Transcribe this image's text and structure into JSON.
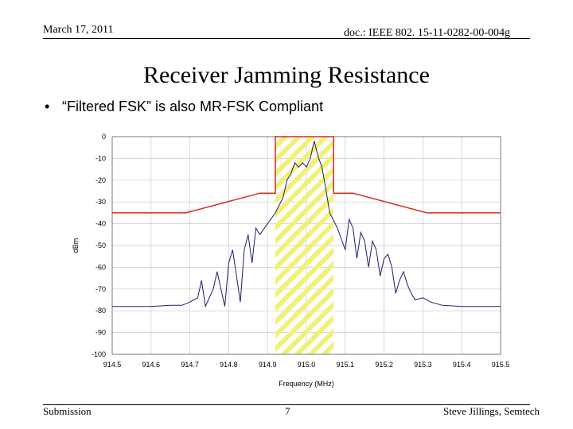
{
  "header": {
    "date": "March 17, 2011",
    "doc_id": "doc.: IEEE 802. 15-11-0282-00-004g"
  },
  "slide": {
    "title": "Receiver Jamming Resistance",
    "bullet": "“Filtered FSK” is also MR-FSK Compliant"
  },
  "footer": {
    "left": "Submission",
    "page": "7",
    "right": "Steve Jillings, Semtech"
  },
  "colors": {
    "mask": "#d42a1c",
    "spectrum": "#1c1f6e",
    "hatch_yellow": "#f3f07a",
    "grid": "#c8c8c8"
  },
  "chart_data": {
    "type": "line",
    "xlabel": "Frequency (MHz)",
    "ylabel": "dBm",
    "xlim": [
      914.5,
      915.5
    ],
    "ylim": [
      -100,
      0
    ],
    "x_ticks": [
      "914.5",
      "914.6",
      "914.7",
      "914.8",
      "914.9",
      "915.0",
      "915.1",
      "915.2",
      "915.3",
      "915.4",
      "915.5"
    ],
    "y_ticks": [
      "0",
      "-10",
      "-20",
      "-30",
      "-40",
      "-50",
      "-60",
      "-70",
      "-80",
      "-90",
      "-100"
    ],
    "grid": true,
    "highlight_band": {
      "x": [
        914.92,
        915.07
      ],
      "pattern": "yellow diagonal hatch"
    },
    "series": [
      {
        "role": "mask",
        "color": "#d42a1c",
        "x": [
          914.5,
          914.69,
          914.88,
          914.92,
          914.92,
          915.07,
          915.07,
          915.12,
          915.31,
          915.5
        ],
        "y": [
          -35,
          -35,
          -26,
          -26,
          0,
          0,
          -26,
          -26,
          -35,
          -35
        ]
      },
      {
        "role": "spectrum",
        "color": "#1c1f6e",
        "x": [
          914.5,
          914.55,
          914.6,
          914.65,
          914.68,
          914.7,
          914.72,
          914.73,
          914.74,
          914.76,
          914.77,
          914.78,
          914.79,
          914.8,
          914.81,
          914.82,
          914.83,
          914.84,
          914.85,
          914.86,
          914.87,
          914.88,
          914.9,
          914.92,
          914.94,
          914.95,
          914.96,
          914.97,
          914.98,
          914.99,
          915.0,
          915.01,
          915.02,
          915.03,
          915.04,
          915.05,
          915.06,
          915.08,
          915.1,
          915.11,
          915.12,
          915.13,
          915.14,
          915.15,
          915.16,
          915.17,
          915.18,
          915.19,
          915.2,
          915.21,
          915.22,
          915.23,
          915.24,
          915.25,
          915.26,
          915.27,
          915.28,
          915.3,
          915.32,
          915.35,
          915.4,
          915.45,
          915.5
        ],
        "y": [
          -78,
          -78,
          -78,
          -77.5,
          -77.5,
          -76,
          -74,
          -66,
          -78,
          -70,
          -62,
          -70,
          -78,
          -58,
          -52,
          -64,
          -76,
          -52,
          -45,
          -58,
          -42,
          -45,
          -40,
          -35,
          -28,
          -20,
          -17,
          -12,
          -14,
          -12,
          -14,
          -10,
          -2,
          -9,
          -14,
          -24,
          -35,
          -42,
          -52,
          -38,
          -42,
          -56,
          -44,
          -48,
          -60,
          -48,
          -52,
          -64,
          -56,
          -54,
          -60,
          -72,
          -66,
          -62,
          -68,
          -72,
          -75,
          -74,
          -76,
          -77.5,
          -78,
          -78,
          -78
        ]
      }
    ]
  }
}
